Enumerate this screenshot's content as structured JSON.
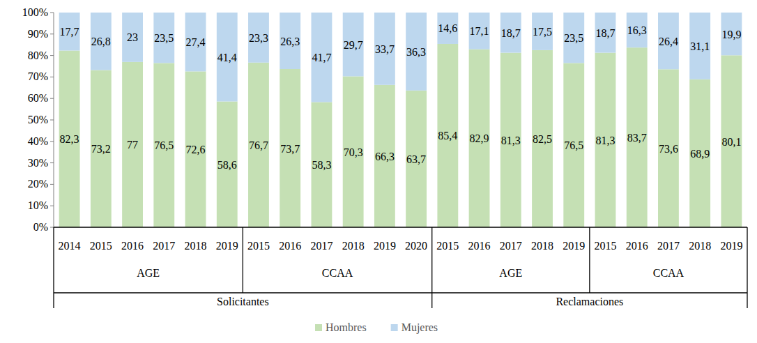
{
  "chart_data": {
    "type": "bar",
    "stacked": true,
    "data_labels": true,
    "legend": "bottom",
    "grid": false,
    "ylim": [
      0,
      100
    ],
    "yticks": [
      {
        "value": 0,
        "label": "0%"
      },
      {
        "value": 10,
        "label": "10%"
      },
      {
        "value": 20,
        "label": "20%"
      },
      {
        "value": 30,
        "label": "30%"
      },
      {
        "value": 40,
        "label": "40%"
      },
      {
        "value": 50,
        "label": "50%"
      },
      {
        "value": 60,
        "label": "60%"
      },
      {
        "value": 70,
        "label": "70%"
      },
      {
        "value": 80,
        "label": "80%"
      },
      {
        "value": 90,
        "label": "90%"
      },
      {
        "value": 100,
        "label": "100%"
      }
    ],
    "categories": [
      "2014",
      "2015",
      "2016",
      "2017",
      "2018",
      "2019",
      "2015",
      "2016",
      "2017",
      "2018",
      "2019",
      "2020",
      "2015",
      "2016",
      "2017",
      "2018",
      "2019",
      "2015",
      "2016",
      "2017",
      "2018",
      "2019"
    ],
    "category_groups": [
      {
        "label": "Solicitantes",
        "groups": [
          {
            "label": "AGE",
            "size": 6
          },
          {
            "label": "CCAA",
            "size": 6
          }
        ]
      },
      {
        "label": "Reclamaciones",
        "groups": [
          {
            "label": "AGE",
            "size": 5
          },
          {
            "label": "CCAA",
            "size": 5
          }
        ]
      }
    ],
    "series": [
      {
        "name": "Hombres",
        "color": "#c5e0b4",
        "values": [
          82.3,
          73.2,
          77,
          76.5,
          72.6,
          58.6,
          76.7,
          73.7,
          58.3,
          70.3,
          66.3,
          63.7,
          85.4,
          82.9,
          81.3,
          82.5,
          76.5,
          81.3,
          83.7,
          73.6,
          68.9,
          80.1
        ],
        "value_labels": [
          "82,3",
          "73,2",
          "77",
          "76,5",
          "72,6",
          "58,6",
          "76,7",
          "73,7",
          "58,3",
          "70,3",
          "66,3",
          "63,7",
          "85,4",
          "82,9",
          "81,3",
          "82,5",
          "76,5",
          "81,3",
          "83,7",
          "73,6",
          "68,9",
          "80,1"
        ]
      },
      {
        "name": "Mujeres",
        "color": "#bdd7ee",
        "values": [
          17.7,
          26.8,
          23,
          23.5,
          27.4,
          41.4,
          23.3,
          26.3,
          41.7,
          29.7,
          33.7,
          36.3,
          14.6,
          17.1,
          18.7,
          17.5,
          23.5,
          18.7,
          16.3,
          26.4,
          31.1,
          19.9
        ],
        "value_labels": [
          "17,7",
          "26,8",
          "23",
          "23,5",
          "27,4",
          "41,4",
          "23,3",
          "26,3",
          "41,7",
          "29,7",
          "33,7",
          "36,3",
          "14,6",
          "17,1",
          "18,7",
          "17,5",
          "23,5",
          "18,7",
          "16,3",
          "26,4",
          "31,1",
          "19,9"
        ]
      }
    ]
  }
}
